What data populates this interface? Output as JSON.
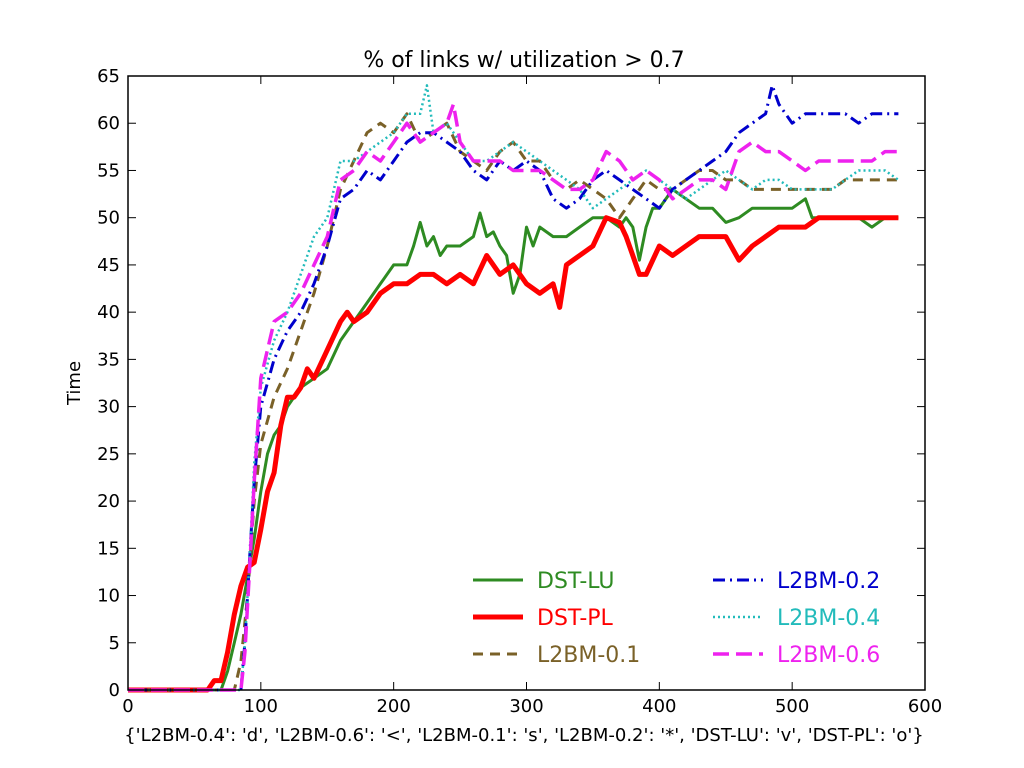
{
  "chart_data": {
    "type": "line",
    "title": "% of links w/ utilization > 0.7",
    "xlabel": "{'L2BM-0.4': 'd', 'L2BM-0.6': '<', 'L2BM-0.1': 's', 'L2BM-0.2': '*', 'DST-LU': 'v', 'DST-PL': 'o'}",
    "ylabel": "Time",
    "xlim": [
      0,
      600
    ],
    "ylim": [
      0,
      65
    ],
    "xticks": [
      "0",
      "100",
      "200",
      "300",
      "400",
      "500",
      "600"
    ],
    "yticks": [
      "0",
      "5",
      "10",
      "15",
      "20",
      "25",
      "30",
      "35",
      "40",
      "45",
      "50",
      "55",
      "60",
      "65"
    ],
    "grid": false,
    "legend_position": "lower-right",
    "series": [
      {
        "name": "DST-LU",
        "color": "#2e8b22",
        "style": "solid",
        "x": [
          0,
          70,
          75,
          80,
          85,
          90,
          95,
          100,
          105,
          110,
          115,
          120,
          125,
          130,
          140,
          150,
          160,
          170,
          180,
          190,
          200,
          210,
          215,
          220,
          225,
          230,
          235,
          240,
          250,
          260,
          265,
          270,
          275,
          280,
          285,
          290,
          295,
          300,
          305,
          310,
          320,
          330,
          340,
          350,
          360,
          370,
          375,
          380,
          385,
          390,
          395,
          400,
          410,
          420,
          430,
          440,
          450,
          460,
          470,
          480,
          490,
          500,
          510,
          515,
          520,
          530,
          540,
          550,
          560,
          570,
          580
        ],
        "y": [
          0,
          0,
          2,
          5,
          8,
          12,
          16,
          21,
          25,
          27,
          28,
          30,
          31,
          32,
          33,
          34,
          37,
          39,
          41,
          43,
          45,
          45,
          47,
          49.5,
          47,
          48,
          46,
          47,
          47,
          48,
          50.5,
          48,
          48.5,
          47,
          46,
          42,
          44,
          49,
          47,
          49,
          48,
          48,
          49,
          50,
          50,
          49,
          50,
          49,
          45.5,
          49,
          51,
          51,
          53,
          52,
          51,
          51,
          49.5,
          50,
          51,
          51,
          51,
          51,
          52,
          50,
          50,
          50,
          50,
          50,
          49,
          50,
          50
        ]
      },
      {
        "name": "DST-PL",
        "color": "#ff0000",
        "style": "solid-thick",
        "x": [
          0,
          60,
          65,
          70,
          75,
          80,
          85,
          90,
          95,
          100,
          105,
          110,
          115,
          120,
          125,
          130,
          135,
          140,
          150,
          160,
          165,
          170,
          180,
          190,
          200,
          210,
          220,
          230,
          240,
          250,
          260,
          270,
          280,
          290,
          300,
          310,
          320,
          325,
          330,
          340,
          350,
          360,
          370,
          375,
          380,
          385,
          390,
          400,
          410,
          420,
          430,
          440,
          450,
          460,
          470,
          480,
          490,
          500,
          510,
          520,
          540,
          560,
          580
        ],
        "y": [
          0,
          0,
          1,
          1,
          4,
          8,
          11,
          13,
          13.5,
          17,
          21,
          23,
          28,
          31,
          31,
          32,
          34,
          33,
          36,
          39,
          40,
          39,
          40,
          42,
          43,
          43,
          44,
          44,
          43,
          44,
          43,
          46,
          44,
          45,
          43,
          42,
          43,
          40.5,
          45,
          46,
          47,
          50,
          49.5,
          48,
          46,
          44,
          44,
          47,
          46,
          47,
          48,
          48,
          48,
          45.5,
          47,
          48,
          49,
          49,
          49,
          50,
          50,
          50,
          50
        ]
      },
      {
        "name": "L2BM-0.1",
        "color": "#7a6128",
        "style": "dashed",
        "x": [
          0,
          80,
          85,
          90,
          95,
          100,
          110,
          120,
          130,
          140,
          150,
          160,
          170,
          180,
          190,
          200,
          210,
          220,
          230,
          240,
          250,
          260,
          270,
          280,
          290,
          300,
          310,
          320,
          330,
          340,
          350,
          360,
          370,
          380,
          390,
          400,
          410,
          420,
          430,
          440,
          450,
          460,
          470,
          480,
          490,
          500,
          510,
          520,
          530,
          540,
          550,
          560,
          570,
          580
        ],
        "y": [
          0,
          0,
          3,
          10,
          20,
          26,
          31,
          34,
          38,
          42,
          47,
          53,
          56,
          59,
          60,
          59,
          61,
          58,
          59,
          60,
          57,
          56,
          55,
          57,
          58,
          56,
          56,
          54,
          53,
          54,
          53,
          52,
          50,
          52,
          54,
          53,
          53,
          54,
          55,
          55,
          54,
          54,
          53,
          53,
          53,
          53,
          53,
          53,
          53,
          54,
          54,
          54,
          54,
          54
        ]
      },
      {
        "name": "L2BM-0.2",
        "color": "#0000cc",
        "style": "dashdot",
        "x": [
          0,
          85,
          88,
          92,
          95,
          100,
          110,
          120,
          130,
          140,
          150,
          160,
          170,
          180,
          190,
          200,
          210,
          220,
          230,
          240,
          250,
          260,
          270,
          280,
          290,
          300,
          310,
          320,
          330,
          340,
          350,
          360,
          370,
          380,
          390,
          400,
          410,
          420,
          430,
          440,
          450,
          460,
          470,
          480,
          485,
          490,
          500,
          510,
          520,
          530,
          540,
          550,
          560,
          570,
          580
        ],
        "y": [
          0,
          0,
          5,
          15,
          22,
          30,
          35,
          38,
          40,
          43,
          47,
          52,
          53,
          55,
          54,
          56,
          58,
          59,
          59,
          58,
          57,
          55,
          54,
          56,
          55,
          56,
          55,
          52,
          51,
          52,
          54,
          55,
          54,
          53,
          52,
          51,
          53,
          54,
          55,
          56,
          57,
          59,
          60,
          61,
          64,
          62,
          60,
          61,
          61,
          61,
          61,
          60,
          61,
          61,
          61
        ]
      },
      {
        "name": "L2BM-0.4",
        "color": "#22bbbb",
        "style": "dotted",
        "x": [
          0,
          85,
          88,
          92,
          95,
          100,
          110,
          120,
          130,
          140,
          150,
          160,
          170,
          180,
          190,
          200,
          210,
          220,
          225,
          230,
          240,
          250,
          260,
          270,
          280,
          290,
          300,
          310,
          320,
          330,
          340,
          350,
          360,
          370,
          380,
          390,
          400,
          410,
          420,
          430,
          440,
          450,
          460,
          470,
          480,
          490,
          500,
          510,
          520,
          530,
          540,
          550,
          560,
          570,
          580
        ],
        "y": [
          0,
          0,
          5,
          15,
          24,
          32,
          37,
          40,
          44,
          48,
          50,
          56,
          56,
          57,
          58,
          59,
          61,
          61,
          64,
          59,
          60,
          58,
          56,
          56,
          57,
          58,
          57,
          56,
          55,
          54,
          53,
          51,
          52,
          53,
          54,
          55,
          54,
          53,
          52,
          53,
          54,
          55,
          54,
          53,
          54,
          54,
          53,
          53,
          53,
          53,
          54,
          55,
          55,
          55,
          54
        ]
      },
      {
        "name": "L2BM-0.6",
        "color": "#ee22ee",
        "style": "dashed-long",
        "x": [
          0,
          85,
          88,
          92,
          95,
          100,
          110,
          120,
          130,
          140,
          150,
          160,
          170,
          180,
          190,
          200,
          210,
          220,
          230,
          240,
          245,
          250,
          260,
          270,
          280,
          290,
          300,
          310,
          320,
          330,
          340,
          350,
          360,
          370,
          380,
          390,
          400,
          410,
          420,
          430,
          440,
          450,
          460,
          470,
          480,
          490,
          500,
          510,
          520,
          530,
          540,
          550,
          560,
          570,
          580
        ],
        "y": [
          0,
          0,
          4,
          14,
          22,
          33,
          39,
          40,
          42,
          45,
          48,
          54,
          55,
          57,
          56,
          58,
          60,
          58,
          59,
          60,
          62,
          58,
          56,
          56,
          56,
          55,
          55,
          55,
          54,
          53,
          53,
          54,
          57,
          56,
          54,
          55,
          54,
          52,
          53,
          54,
          54,
          53,
          57,
          58,
          57,
          57,
          56,
          55,
          56,
          56,
          56,
          56,
          56,
          57,
          57
        ]
      }
    ]
  }
}
